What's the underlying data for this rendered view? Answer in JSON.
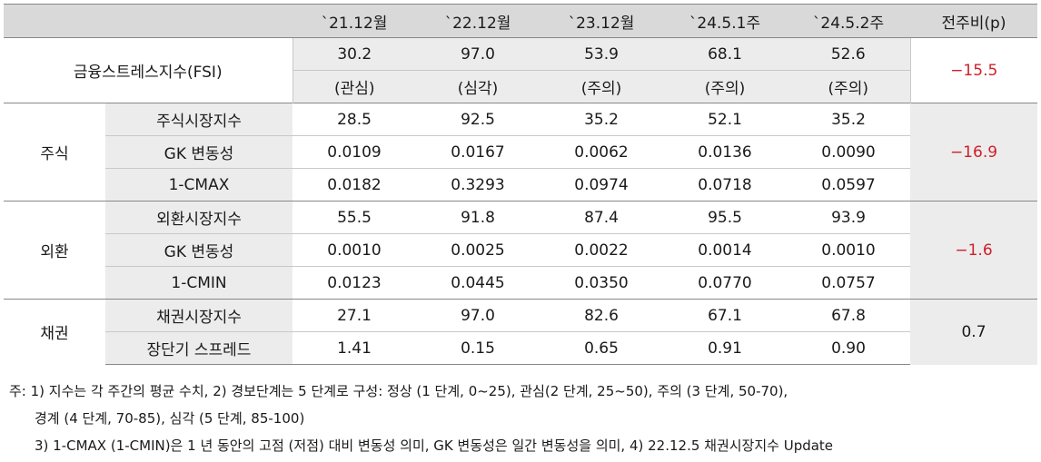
{
  "header": {
    "cols": [
      "`21.12월",
      "`22.12월",
      "`23.12월",
      "`24.5.1주",
      "`24.5.2주",
      "전주비(p)"
    ]
  },
  "fsi": {
    "label": "금융스트레스지수(FSI)",
    "values": [
      "30.2",
      "97.0",
      "53.9",
      "68.1",
      "52.6"
    ],
    "stages": [
      "(관심)",
      "(심각)",
      "(주의)",
      "(주의)",
      "(주의)"
    ],
    "change": "−15.5"
  },
  "groups": [
    {
      "name": "주식",
      "change": "−16.9",
      "rows": [
        {
          "label": "주식시장지수",
          "values": [
            "28.5",
            "92.5",
            "35.2",
            "52.1",
            "35.2"
          ]
        },
        {
          "label": "GK 변동성",
          "values": [
            "0.0109",
            "0.0167",
            "0.0062",
            "0.0136",
            "0.0090"
          ]
        },
        {
          "label": "1-CMAX",
          "values": [
            "0.0182",
            "0.3293",
            "0.0974",
            "0.0718",
            "0.0597"
          ]
        }
      ]
    },
    {
      "name": "외환",
      "change": "−1.6",
      "rows": [
        {
          "label": "외환시장지수",
          "values": [
            "55.5",
            "91.8",
            "87.4",
            "95.5",
            "93.9"
          ]
        },
        {
          "label": "GK 변동성",
          "values": [
            "0.0010",
            "0.0025",
            "0.0022",
            "0.0014",
            "0.0010"
          ]
        },
        {
          "label": "1-CMIN",
          "values": [
            "0.0123",
            "0.0445",
            "0.0350",
            "0.0770",
            "0.0757"
          ]
        }
      ]
    },
    {
      "name": "채권",
      "change": "0.7",
      "rows": [
        {
          "label": "채권시장지수",
          "values": [
            "27.1",
            "97.0",
            "82.6",
            "67.1",
            "67.8"
          ]
        },
        {
          "label": "장단기 스프레드",
          "values": [
            "1.41",
            "0.15",
            "0.65",
            "0.91",
            "0.90"
          ]
        }
      ]
    }
  ],
  "notes": {
    "line1": "주: 1) 지수는 각 주간의 평균 수치, 2) 경보단계는 5 단계로 구성: 정상 (1 단계, 0~25), 관심(2 단계, 25~50), 주의 (3 단계, 50-70),",
    "line2": "경계 (4 단계, 70-85), 심각 (5 단계, 85-100)",
    "line3": "3) 1-CMAX (1-CMIN)은 1 년 동안의 고점 (저점) 대비 변동성 의미, GK 변동성은 일간 변동성을 의미, 4) 22.12.5 채권시장지수 Update"
  }
}
